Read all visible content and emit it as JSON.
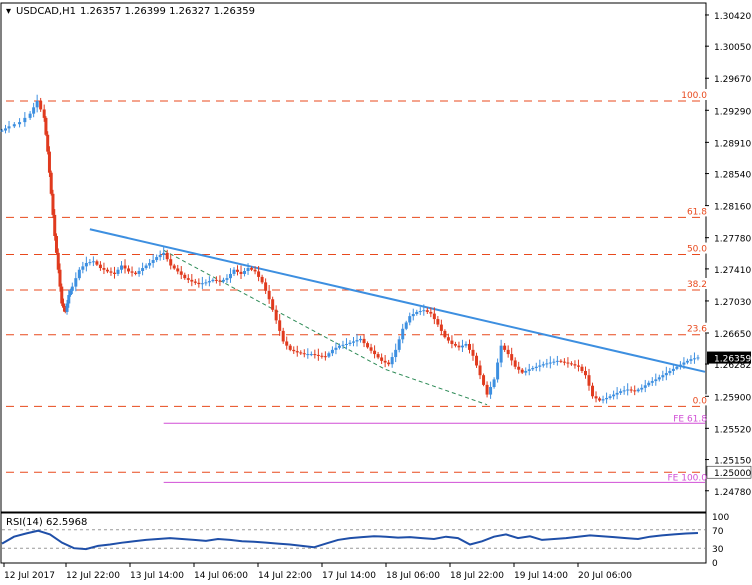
{
  "chart_data": {
    "type": "candlestick",
    "header": {
      "symbol": "USDCAD,H1",
      "ohlc": "1.26357 1.26399 1.26327 1.26359"
    },
    "price_axis": {
      "ylim": [
        1.2454,
        1.3055
      ],
      "ticks": [
        "1.30420",
        "1.30050",
        "1.29670",
        "1.29290",
        "1.28910",
        "1.28540",
        "1.28160",
        "1.27780",
        "1.27410",
        "1.27030",
        "1.26650",
        "1.26282",
        "1.25900",
        "1.25520",
        "1.25150",
        "1.24780"
      ],
      "current_price": "1.26359",
      "round_level": "1.25000"
    },
    "time_axis": {
      "labels": [
        "12 Jul 2017",
        "12 Jul 22:00",
        "13 Jul 14:00",
        "14 Jul 06:00",
        "14 Jul 22:00",
        "17 Jul 14:00",
        "18 Jul 06:00",
        "18 Jul 22:00",
        "19 Jul 14:00",
        "20 Jul 06:00"
      ],
      "x_range": [
        0,
        200
      ]
    },
    "fibonacci_retracement": [
      {
        "label": "100.0",
        "price": 1.294
      },
      {
        "label": "61.8",
        "price": 1.2802
      },
      {
        "label": "50.0",
        "price": 1.2758
      },
      {
        "label": "38.2",
        "price": 1.2716
      },
      {
        "label": "23.6",
        "price": 1.2663
      },
      {
        "label": "0.0",
        "price": 1.2578
      }
    ],
    "fibonacci_expansion": [
      {
        "label": "FE 61.8",
        "price": 1.2558
      },
      {
        "label": "FE 100.0",
        "price": 1.2488
      }
    ],
    "round_level_price": 1.25,
    "trendlines": [
      {
        "name": "resistance",
        "style": "solid",
        "color": "#3d8fe0",
        "points": [
          [
            25,
            1.2788
          ],
          [
            200,
            1.2619
          ]
        ]
      },
      {
        "name": "abc",
        "style": "dashed",
        "color": "#2e8b57",
        "points": [
          [
            46,
            1.2763
          ],
          [
            109,
            1.2622
          ],
          [
            138,
            1.258
          ]
        ]
      }
    ],
    "price_path": [
      [
        0,
        1.2905
      ],
      [
        2,
        1.291
      ],
      [
        5,
        1.2915
      ],
      [
        8,
        1.2925
      ],
      [
        10,
        1.294
      ],
      [
        12,
        1.292
      ],
      [
        13,
        1.288
      ],
      [
        14,
        1.283
      ],
      [
        15,
        1.278
      ],
      [
        16,
        1.274
      ],
      [
        17,
        1.27
      ],
      [
        18,
        1.269
      ],
      [
        19,
        1.271
      ],
      [
        20,
        1.272
      ],
      [
        22,
        1.274
      ],
      [
        24,
        1.2748
      ],
      [
        26,
        1.275
      ],
      [
        28,
        1.2742
      ],
      [
        30,
        1.2738
      ],
      [
        32,
        1.2735
      ],
      [
        34,
        1.2745
      ],
      [
        36,
        1.2738
      ],
      [
        38,
        1.2735
      ],
      [
        40,
        1.2742
      ],
      [
        42,
        1.2748
      ],
      [
        44,
        1.2755
      ],
      [
        46,
        1.276
      ],
      [
        48,
        1.2745
      ],
      [
        50,
        1.2738
      ],
      [
        52,
        1.273
      ],
      [
        54,
        1.2726
      ],
      [
        56,
        1.2723
      ],
      [
        58,
        1.2725
      ],
      [
        60,
        1.2728
      ],
      [
        62,
        1.2726
      ],
      [
        64,
        1.273
      ],
      [
        66,
        1.274
      ],
      [
        68,
        1.2735
      ],
      [
        70,
        1.2742
      ],
      [
        72,
        1.2738
      ],
      [
        74,
        1.2725
      ],
      [
        76,
        1.2705
      ],
      [
        78,
        1.268
      ],
      [
        80,
        1.2655
      ],
      [
        82,
        1.2645
      ],
      [
        84,
        1.2642
      ],
      [
        86,
        1.264
      ],
      [
        88,
        1.264
      ],
      [
        90,
        1.2638
      ],
      [
        92,
        1.2637
      ],
      [
        94,
        1.2645
      ],
      [
        96,
        1.265
      ],
      [
        98,
        1.2652
      ],
      [
        100,
        1.2655
      ],
      [
        102,
        1.2658
      ],
      [
        104,
        1.2648
      ],
      [
        106,
        1.264
      ],
      [
        108,
        1.2632
      ],
      [
        110,
        1.2628
      ],
      [
        112,
        1.2645
      ],
      [
        114,
        1.267
      ],
      [
        116,
        1.2685
      ],
      [
        118,
        1.269
      ],
      [
        120,
        1.2692
      ],
      [
        122,
        1.2688
      ],
      [
        124,
        1.2675
      ],
      [
        126,
        1.266
      ],
      [
        128,
        1.2652
      ],
      [
        130,
        1.2648
      ],
      [
        132,
        1.2652
      ],
      [
        134,
        1.2638
      ],
      [
        136,
        1.2615
      ],
      [
        138,
        1.2592
      ],
      [
        140,
        1.261
      ],
      [
        142,
        1.265
      ],
      [
        144,
        1.264
      ],
      [
        146,
        1.2625
      ],
      [
        148,
        1.2618
      ],
      [
        150,
        1.2622
      ],
      [
        152,
        1.2625
      ],
      [
        154,
        1.2628
      ],
      [
        156,
        1.263
      ],
      [
        158,
        1.2632
      ],
      [
        160,
        1.263
      ],
      [
        162,
        1.2628
      ],
      [
        164,
        1.2625
      ],
      [
        166,
        1.2615
      ],
      [
        168,
        1.259
      ],
      [
        170,
        1.2585
      ],
      [
        172,
        1.2588
      ],
      [
        174,
        1.2592
      ],
      [
        176,
        1.2596
      ],
      [
        178,
        1.2598
      ],
      [
        180,
        1.2596
      ],
      [
        182,
        1.26
      ],
      [
        184,
        1.2606
      ],
      [
        186,
        1.261
      ],
      [
        188,
        1.2615
      ],
      [
        190,
        1.262
      ],
      [
        192,
        1.2625
      ],
      [
        194,
        1.263
      ],
      [
        196,
        1.2634
      ],
      [
        198,
        1.2636
      ]
    ],
    "rsi": {
      "label": "RSI(14) 62.5968",
      "value": 62.5968,
      "levels": [
        "100",
        "70",
        "30",
        "0"
      ],
      "ylim": [
        0,
        100
      ],
      "values": [
        40,
        55,
        62,
        68,
        60,
        42,
        30,
        28,
        35,
        38,
        42,
        45,
        48,
        50,
        52,
        50,
        48,
        46,
        50,
        48,
        45,
        44,
        42,
        40,
        38,
        35,
        32,
        40,
        48,
        52,
        54,
        56,
        55,
        53,
        54,
        52,
        50,
        55,
        52,
        38,
        45,
        55,
        60,
        52,
        56,
        48,
        50,
        52,
        55,
        58,
        56,
        54,
        52,
        50,
        55,
        58,
        60,
        62,
        63
      ]
    },
    "colors": {
      "bull": "#3d8fe0",
      "bear": "#e03a1e",
      "fib_line": "#e8491d",
      "fib_label": "#e8491d",
      "fe_line": "#d14fd6",
      "trendline": "#3d8fe0",
      "abc_line": "#2e8b57",
      "price_box": "#000000"
    }
  }
}
